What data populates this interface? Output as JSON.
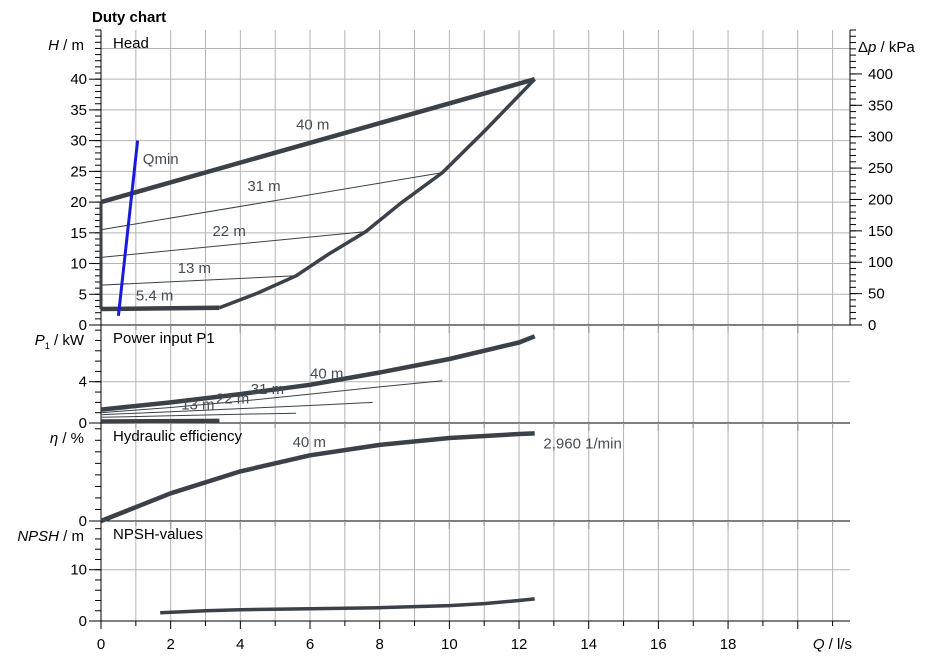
{
  "title": "Duty chart",
  "colors": {
    "curve": "#3a4149",
    "qmin": "#1a1adb",
    "grid": "#b4b4b4",
    "axis": "#000000"
  },
  "chart_data": [
    {
      "type": "line",
      "panel_title": "Head",
      "ylabel": {
        "italic": "H",
        "unit": " / m"
      },
      "y2label": {
        "prefix": "Δ",
        "italic": "p",
        "unit": " / kPa"
      },
      "xlabel": {
        "italic": "Q",
        "unit": " / l/s"
      },
      "xlim": [
        0,
        21.5
      ],
      "ylim": [
        0,
        48
      ],
      "y2lim": [
        0,
        470
      ],
      "x_ticks": [
        "0",
        "2",
        "4",
        "6",
        "8",
        "10",
        "12",
        "14",
        "16",
        "18"
      ],
      "y_ticks": [
        "0",
        "5",
        "10",
        "15",
        "20",
        "25",
        "30",
        "35",
        "40"
      ],
      "y2_ticks": [
        "0",
        "50",
        "100",
        "150",
        "200",
        "250",
        "300",
        "350",
        "400"
      ],
      "grid": true,
      "series": [
        {
          "name": "40 m",
          "x": [
            0,
            12.45
          ],
          "y": [
            20,
            40
          ],
          "width": 4.5
        },
        {
          "name": "31 m",
          "x": [
            0,
            9.8
          ],
          "y": [
            15.5,
            24.8
          ],
          "width": 1
        },
        {
          "name": "22 m",
          "x": [
            0,
            7.6
          ],
          "y": [
            11,
            15.2
          ],
          "width": 1
        },
        {
          "name": "13 m",
          "x": [
            0,
            5.6
          ],
          "y": [
            6.5,
            8
          ],
          "width": 1
        },
        {
          "name": "5.4 m",
          "x": [
            0,
            3.4
          ],
          "y": [
            2.6,
            2.8
          ],
          "width": 4.5
        },
        {
          "name": "",
          "x": [
            3.4,
            4.5,
            5.6,
            6.5,
            7.6,
            8.6,
            9.8,
            11.0,
            12.45
          ],
          "y": [
            2.8,
            5.2,
            8,
            11.4,
            15.2,
            19.8,
            24.8,
            31.5,
            40
          ],
          "width": 3.5
        },
        {
          "name": "",
          "x": [
            0,
            0
          ],
          "y": [
            2.6,
            20
          ],
          "width": 3
        },
        {
          "name": "Qmin",
          "x": [
            0.5,
            1.05
          ],
          "y": [
            1.5,
            30
          ],
          "width": 3,
          "color": "qmin"
        }
      ],
      "annotations": [
        {
          "text": "40 m",
          "x": 5.6,
          "y": 31.8
        },
        {
          "text": "31 m",
          "x": 4.2,
          "y": 21.8
        },
        {
          "text": "22 m",
          "x": 3.2,
          "y": 14.5
        },
        {
          "text": "13 m",
          "x": 2.2,
          "y": 8.5
        },
        {
          "text": "5.4 m",
          "x": 1.0,
          "y": 4.0
        },
        {
          "text": "Qmin",
          "x": 1.2,
          "y": 26.2
        }
      ]
    },
    {
      "type": "line",
      "panel_title": "Power input P1",
      "ylabel": {
        "italic": "P",
        "sub": "1",
        "unit": " / kW"
      },
      "xlim": [
        0,
        21.5
      ],
      "ylim": [
        0,
        9.5
      ],
      "y_ticks": [
        "0",
        "4"
      ],
      "grid": true,
      "series": [
        {
          "name": "40 m",
          "x": [
            0,
            2,
            4,
            6,
            8,
            10,
            12,
            12.45
          ],
          "y": [
            1.3,
            2.0,
            2.8,
            3.7,
            4.9,
            6.2,
            7.8,
            8.4
          ],
          "width": 4.5
        },
        {
          "name": "31 m",
          "x": [
            0,
            2,
            4,
            6,
            8,
            9.8
          ],
          "y": [
            1.0,
            1.5,
            2.1,
            2.8,
            3.5,
            4.1
          ],
          "width": 1
        },
        {
          "name": "22 m",
          "x": [
            0,
            2,
            4,
            6,
            7.8
          ],
          "y": [
            0.8,
            1.1,
            1.4,
            1.7,
            2.0
          ],
          "width": 1
        },
        {
          "name": "13 m",
          "x": [
            0,
            2,
            4,
            5.6
          ],
          "y": [
            0.55,
            0.7,
            0.85,
            0.95
          ],
          "width": 1
        },
        {
          "name": "5.4 m",
          "x": [
            0,
            3.4
          ],
          "y": [
            0.15,
            0.2
          ],
          "width": 4.5
        }
      ],
      "annotations": [
        {
          "text": "40 m",
          "x": 6.0,
          "y": 4.3
        },
        {
          "text": "31 m",
          "x": 4.3,
          "y": 2.8
        },
        {
          "text": "22 m",
          "x": 3.3,
          "y": 1.9
        },
        {
          "text": "13 m",
          "x": 2.3,
          "y": 1.3
        }
      ]
    },
    {
      "type": "line",
      "panel_title": "Hydraulic efficiency",
      "ylabel": {
        "italic": "η",
        "unit": " / %"
      },
      "xlim": [
        0,
        21.5
      ],
      "ylim": [
        0,
        85
      ],
      "y_ticks": [
        "0"
      ],
      "grid": true,
      "series": [
        {
          "name": "40 m",
          "x": [
            0,
            2,
            4,
            6,
            8,
            10,
            12,
            12.45
          ],
          "y": [
            0,
            24,
            43,
            57,
            66,
            72,
            75.5,
            76
          ],
          "width": 4.5
        }
      ],
      "annotations": [
        {
          "text": "40 m",
          "x": 5.5,
          "y": 64
        },
        {
          "text": "2,960 1/min",
          "x": 12.7,
          "y": 63
        }
      ]
    },
    {
      "type": "line",
      "panel_title": "NPSH-values",
      "ylabel": {
        "italic": "NPSH",
        "unit": " / m"
      },
      "xlim": [
        0,
        21.5
      ],
      "ylim": [
        0,
        19.5
      ],
      "y_ticks": [
        "0",
        "10"
      ],
      "grid": true,
      "series": [
        {
          "name": "",
          "x": [
            1.7,
            3,
            4,
            6,
            8,
            10,
            11,
            12,
            12.45
          ],
          "y": [
            1.6,
            2.0,
            2.2,
            2.4,
            2.6,
            3.0,
            3.4,
            4.0,
            4.3
          ],
          "width": 3.5
        }
      ],
      "annotations": []
    }
  ]
}
